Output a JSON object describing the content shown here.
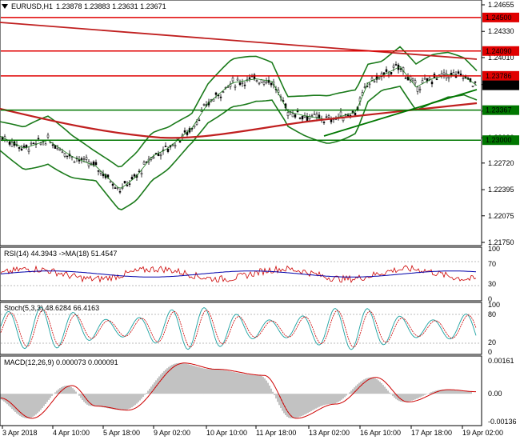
{
  "header": {
    "symbol": "EURUSD,H1",
    "ohlc": "1.23878 1.23883 1.23631 1.23671"
  },
  "price_pane": {
    "scale_labels": [
      "1.24655",
      "1.24330",
      "1.24010",
      "1.23680",
      "1.23355",
      "1.23030",
      "1.22720",
      "1.22395",
      "1.22075",
      "1.21750"
    ],
    "levels": [
      {
        "value": "1.24500",
        "color": "#e00000",
        "style": "red"
      },
      {
        "value": "1.24090",
        "color": "#e00000",
        "style": "red"
      },
      {
        "value": "1.23786",
        "color": "#e00000",
        "style": "red"
      },
      {
        "value": "1.23367",
        "color": "#007700",
        "style": "green"
      },
      {
        "value": "1.23000",
        "color": "#007700",
        "style": "green"
      }
    ],
    "current_price": "1.23671"
  },
  "rsi_pane": {
    "label": "RSI(14) 44.3943  ->MA(18) 51.4547",
    "scale_labels": [
      "100",
      "70",
      "30",
      "0"
    ]
  },
  "stoch_pane": {
    "label": "Stoch(5,3,3) 48.6284 66.4163",
    "scale_labels": [
      "100",
      "80",
      "20",
      "0"
    ]
  },
  "macd_pane": {
    "label": "MACD(12,26,9) 0.000073 0.000091",
    "scale_labels": [
      "0.00161",
      "0.00",
      "-0.00136"
    ]
  },
  "time_axis": [
    "3 Apr 2018",
    "4 Apr 10:00",
    "5 Apr 18:00",
    "9 Apr 02:00",
    "10 Apr 10:00",
    "11 Apr 18:00",
    "13 Apr 02:00",
    "16 Apr 10:00",
    "17 Apr 18:00",
    "19 Apr 02:00"
  ],
  "colors": {
    "candle": "#000000",
    "bollinger": "#1a7a1a",
    "red_level": "#e00000",
    "green_level": "#007700",
    "rsi": "#cc0000",
    "rsi_ma": "#0000aa",
    "stoch_main": "#1aa0a0",
    "stoch_signal": "#cc0000",
    "macd_line": "#cc0000",
    "macd_hist": "#999999"
  }
}
